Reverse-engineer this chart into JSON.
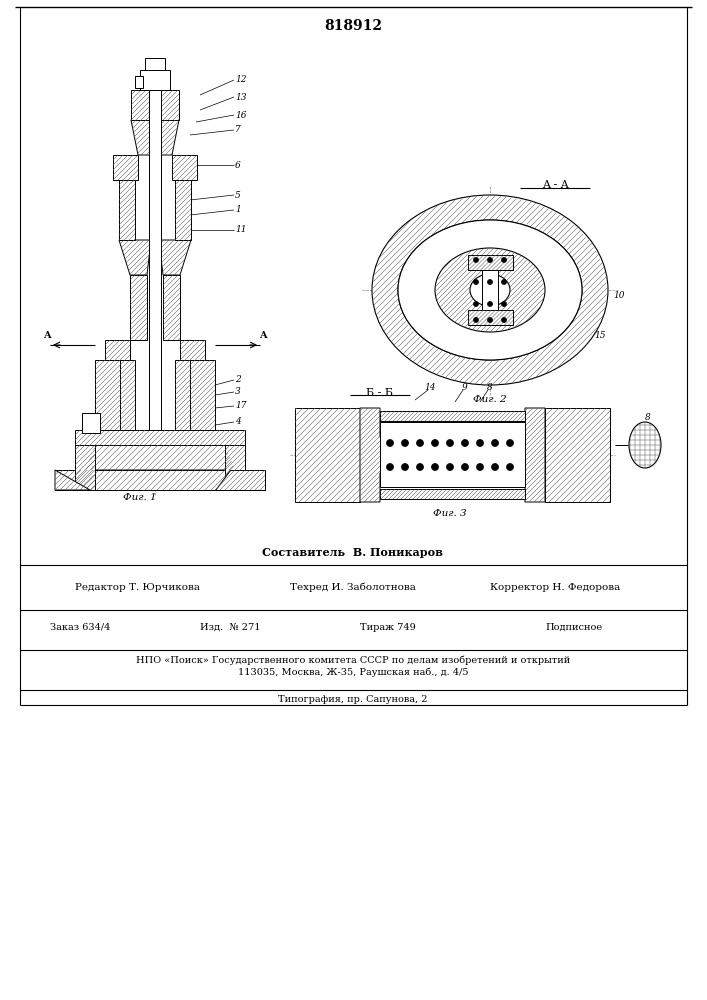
{
  "patent_number": "818912",
  "fig1_label": "Фиг. 1",
  "fig2_label": "Фиг. 2",
  "fig3_label": "Фиг. 3",
  "section_aa": "A - A",
  "section_bb": "Б - Б",
  "composer": "Составитель  В. Поникаров",
  "editor": "Редактор Т. Юрчикова",
  "techred": "Техред И. Заболотнова",
  "corrector": "Корректор Н. Федорова",
  "order": "Заказ 634/4",
  "izdanie": "Изд.  № 271",
  "tirazh": "Тираж 749",
  "podpisnoe": "Подписное",
  "npo_line": "НПО «Поиск» Государственного комитета СССР по делам изобретений и открытий",
  "address_line": "113035, Москва, Ж-35, Раушская наб., д. 4/5",
  "typography": "Типография, пр. Сапуновa, 2",
  "bg_color": "#ffffff"
}
